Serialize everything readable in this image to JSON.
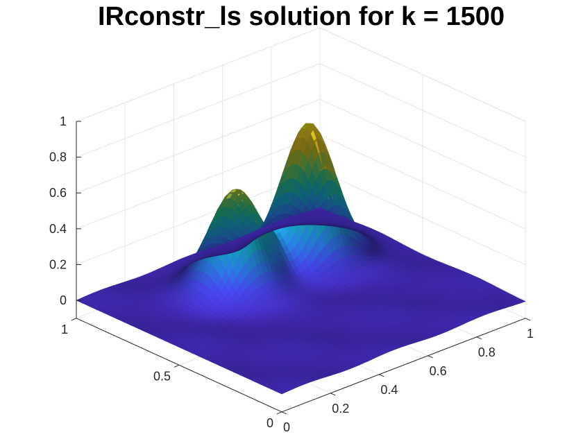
{
  "chart_data": {
    "type": "surface",
    "title": "IRconstr_ls solution for k = 1500",
    "xlabel": "",
    "ylabel": "",
    "zlabel": "",
    "xlim": [
      0,
      1
    ],
    "ylim": [
      0,
      1
    ],
    "zlim": [
      -0.1,
      1
    ],
    "x_ticks": [
      "0",
      "0.2",
      "0.4",
      "0.6",
      "0.8",
      "1"
    ],
    "y_ticks": [
      "0",
      "0.5",
      "1"
    ],
    "z_ticks": [
      "0",
      "0.2",
      "0.4",
      "0.6",
      "0.8",
      "1"
    ],
    "grid": true,
    "colormap": "parula",
    "peaks": [
      {
        "x": 0.42,
        "y": 0.72,
        "z": 0.55
      },
      {
        "x": 0.72,
        "y": 0.72,
        "z": 0.76
      }
    ],
    "base_level": 0.0
  },
  "colors": {
    "colormap_stops": [
      "#3e26a8",
      "#4748f2",
      "#2e87f7",
      "#18b0d4",
      "#2ac38b",
      "#82ca55",
      "#d5bb21",
      "#fbd32c",
      "#f9fb0e"
    ]
  }
}
